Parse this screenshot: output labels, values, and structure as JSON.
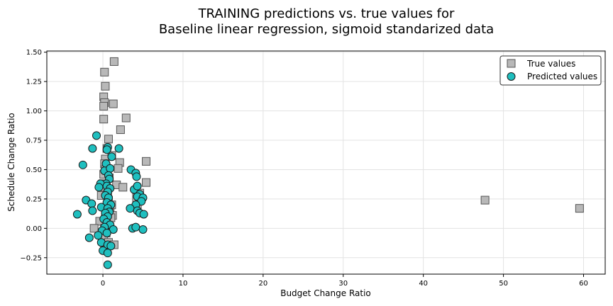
{
  "chart_data": {
    "type": "scatter",
    "title_lines": [
      "TRAINING predictions vs. true values for",
      "Baseline linear regression, sigmoid standarized data"
    ],
    "xlabel": "Budget Change Ratio",
    "ylabel": "Schedule Change Ratio",
    "xlim": [
      -7,
      62.7
    ],
    "ylim": [
      -0.39,
      1.51
    ],
    "xticks": [
      0,
      10,
      20,
      30,
      40,
      50,
      60
    ],
    "xtick_labels": [
      "0",
      "10",
      "20",
      "30",
      "40",
      "50",
      "60"
    ],
    "yticks": [
      -0.25,
      0,
      0.25,
      0.5,
      0.75,
      1.0,
      1.25,
      1.5
    ],
    "ytick_labels": [
      "−0.25",
      "0.00",
      "0.25",
      "0.50",
      "0.75",
      "1.00",
      "1.25",
      "1.50"
    ],
    "grid": true,
    "legend_position": "top-right",
    "series": [
      {
        "name": "True values",
        "marker": "square",
        "color": "#b8b8b8",
        "edge_color": "#555555",
        "points": [
          [
            1.4,
            1.42
          ],
          [
            0.2,
            1.33
          ],
          [
            0.3,
            1.21
          ],
          [
            0.1,
            1.12
          ],
          [
            0.2,
            1.07
          ],
          [
            0.1,
            1.04
          ],
          [
            1.3,
            1.06
          ],
          [
            2.9,
            0.94
          ],
          [
            0.1,
            0.93
          ],
          [
            2.2,
            0.84
          ],
          [
            0.7,
            0.76
          ],
          [
            0.5,
            0.68
          ],
          [
            1.1,
            0.62
          ],
          [
            0.3,
            0.59
          ],
          [
            0.2,
            0.55
          ],
          [
            0.3,
            0.5
          ],
          [
            0.1,
            0.46
          ],
          [
            2.1,
            0.56
          ],
          [
            1.9,
            0.51
          ],
          [
            5.4,
            0.57
          ],
          [
            5.4,
            0.39
          ],
          [
            0.0,
            0.38
          ],
          [
            0.3,
            0.35
          ],
          [
            1.7,
            0.37
          ],
          [
            2.5,
            0.35
          ],
          [
            0.6,
            0.3
          ],
          [
            -0.2,
            0.28
          ],
          [
            0.7,
            0.24
          ],
          [
            1.1,
            0.2
          ],
          [
            0.4,
            0.16
          ],
          [
            4.3,
            0.2
          ],
          [
            4.6,
            0.3
          ],
          [
            0.9,
            0.13
          ],
          [
            1.2,
            0.11
          ],
          [
            0.3,
            0.08
          ],
          [
            -0.4,
            0.06
          ],
          [
            0.6,
            0.02
          ],
          [
            0.2,
            0.0
          ],
          [
            -1.1,
            0.0
          ],
          [
            0.4,
            -0.04
          ],
          [
            0.1,
            -0.07
          ],
          [
            0.7,
            -0.12
          ],
          [
            1.4,
            -0.14
          ],
          [
            0.2,
            -0.18
          ],
          [
            0.8,
            0.43
          ],
          [
            1.0,
            0.09
          ],
          [
            4.2,
            0.26
          ],
          [
            47.7,
            0.24
          ],
          [
            59.5,
            0.17
          ]
        ]
      },
      {
        "name": "Predicted values",
        "marker": "circle",
        "color": "#1fbfbf",
        "edge_color": "#1a1a1a",
        "points": [
          [
            -0.8,
            0.79
          ],
          [
            -1.3,
            0.68
          ],
          [
            0.6,
            0.69
          ],
          [
            0.5,
            0.67
          ],
          [
            2.0,
            0.68
          ],
          [
            1.1,
            0.61
          ],
          [
            -2.5,
            0.54
          ],
          [
            0.4,
            0.55
          ],
          [
            0.2,
            0.49
          ],
          [
            0.9,
            0.51
          ],
          [
            0.7,
            0.45
          ],
          [
            0.8,
            0.42
          ],
          [
            0.4,
            0.38
          ],
          [
            -0.3,
            0.38
          ],
          [
            0.5,
            0.36
          ],
          [
            0.9,
            0.34
          ],
          [
            -0.5,
            0.35
          ],
          [
            0.6,
            0.31
          ],
          [
            0.3,
            0.28
          ],
          [
            0.7,
            0.26
          ],
          [
            -2.1,
            0.24
          ],
          [
            -1.4,
            0.21
          ],
          [
            0.5,
            0.22
          ],
          [
            1.0,
            0.2
          ],
          [
            -0.2,
            0.18
          ],
          [
            0.6,
            0.17
          ],
          [
            -1.3,
            0.15
          ],
          [
            0.8,
            0.14
          ],
          [
            0.3,
            0.13
          ],
          [
            -3.2,
            0.12
          ],
          [
            0.6,
            0.1
          ],
          [
            0.1,
            0.08
          ],
          [
            0.5,
            0.05
          ],
          [
            0.9,
            0.03
          ],
          [
            0.2,
            0.01
          ],
          [
            -0.1,
            -0.02
          ],
          [
            1.3,
            -0.01
          ],
          [
            0.5,
            -0.04
          ],
          [
            -0.6,
            -0.06
          ],
          [
            -1.7,
            -0.08
          ],
          [
            -0.2,
            -0.12
          ],
          [
            0.6,
            -0.14
          ],
          [
            1.0,
            -0.15
          ],
          [
            0.0,
            -0.19
          ],
          [
            0.6,
            -0.21
          ],
          [
            0.6,
            -0.31
          ],
          [
            3.5,
            0.5
          ],
          [
            4.1,
            0.47
          ],
          [
            4.2,
            0.44
          ],
          [
            3.9,
            0.33
          ],
          [
            4.3,
            0.36
          ],
          [
            4.6,
            0.29
          ],
          [
            4.3,
            0.27
          ],
          [
            5.0,
            0.26
          ],
          [
            4.8,
            0.23
          ],
          [
            4.1,
            0.2
          ],
          [
            3.4,
            0.17
          ],
          [
            4.3,
            0.15
          ],
          [
            4.6,
            0.13
          ],
          [
            5.1,
            0.12
          ],
          [
            3.7,
            0.0
          ],
          [
            4.1,
            0.01
          ],
          [
            5.0,
            -0.01
          ]
        ]
      }
    ]
  }
}
